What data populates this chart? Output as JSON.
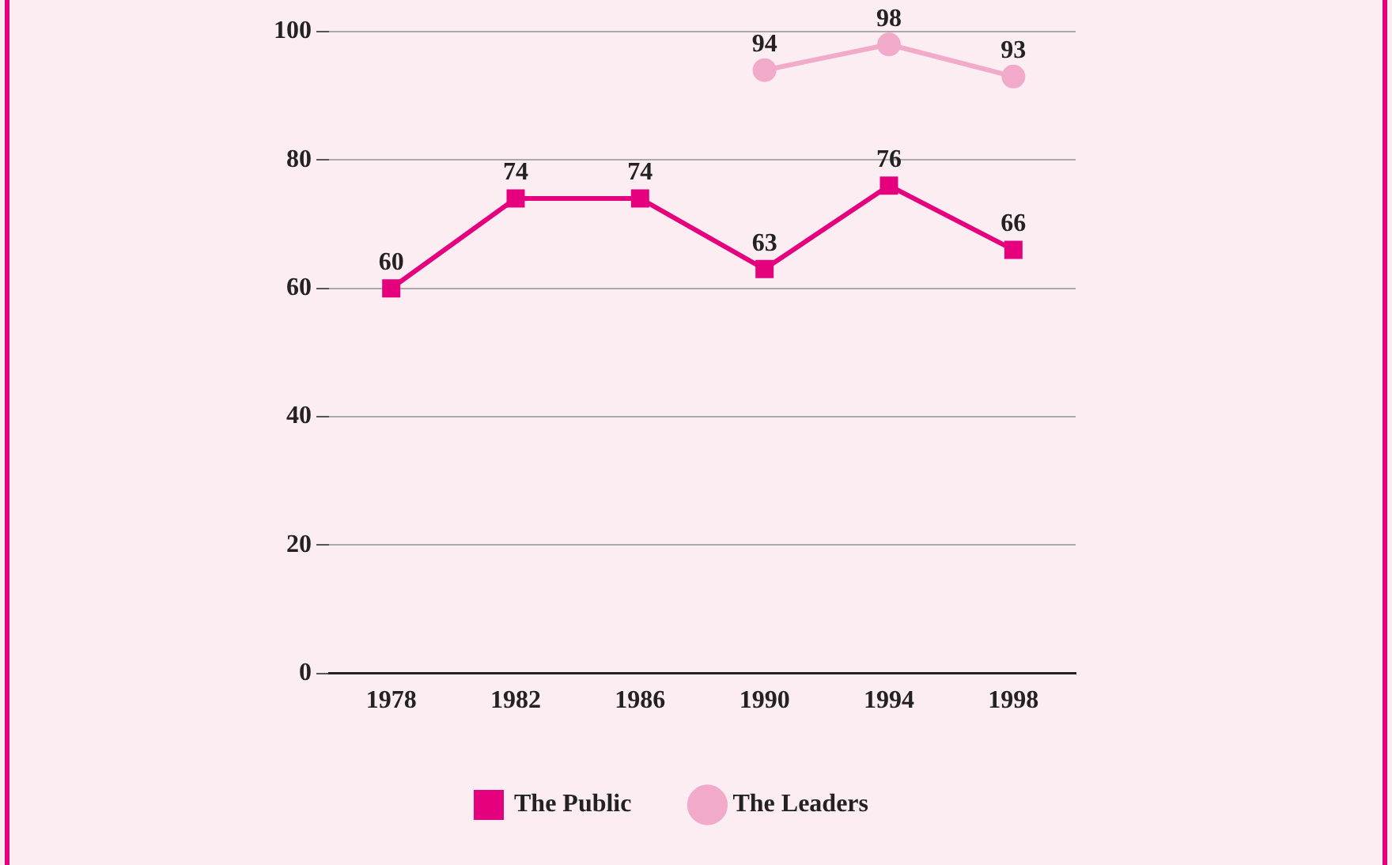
{
  "chart_data": {
    "type": "line",
    "categories": [
      "1978",
      "1982",
      "1986",
      "1990",
      "1994",
      "1998"
    ],
    "series": [
      {
        "name": "The Public",
        "color": "#e5007d",
        "marker": "square",
        "values": [
          60,
          74,
          74,
          63,
          76,
          66
        ]
      },
      {
        "name": "The Leaders",
        "color": "#f2aacb",
        "marker": "circle",
        "values": [
          null,
          null,
          null,
          94,
          98,
          93
        ]
      }
    ],
    "ylim": [
      0,
      100
    ],
    "yticks": [
      0,
      20,
      40,
      60,
      80,
      100
    ],
    "grid": "y",
    "legend": "bottom",
    "data_labels": true,
    "line_style": "solid"
  }
}
